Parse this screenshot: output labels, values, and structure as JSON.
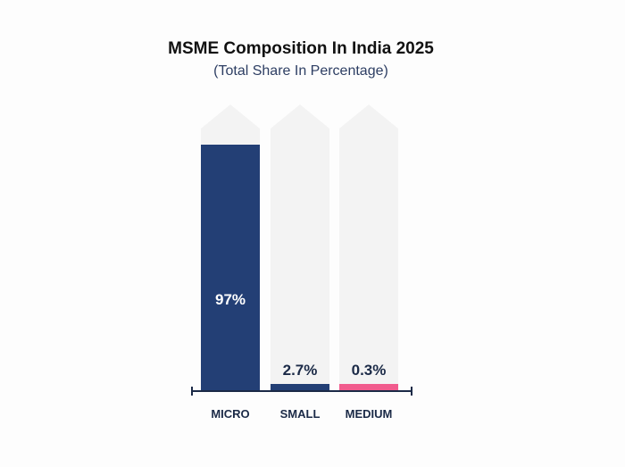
{
  "chart_data": {
    "type": "bar",
    "title": "MSME Composition In India 2025",
    "subtitle": "(Total Share In Percentage)",
    "categories": [
      "MICRO",
      "SMALL",
      "MEDIUM"
    ],
    "values": [
      97,
      2.7,
      0.3
    ],
    "data_labels": [
      "97%",
      "2.7%",
      "0.3%"
    ],
    "ylim": [
      0,
      100
    ],
    "xlabel": "",
    "ylabel": "",
    "grid": false,
    "colors": [
      "#233f75",
      "#233f75",
      "#f15b8d"
    ],
    "background_arrow_color": "#f3f3f3",
    "axis_color": "#1b2a47"
  }
}
